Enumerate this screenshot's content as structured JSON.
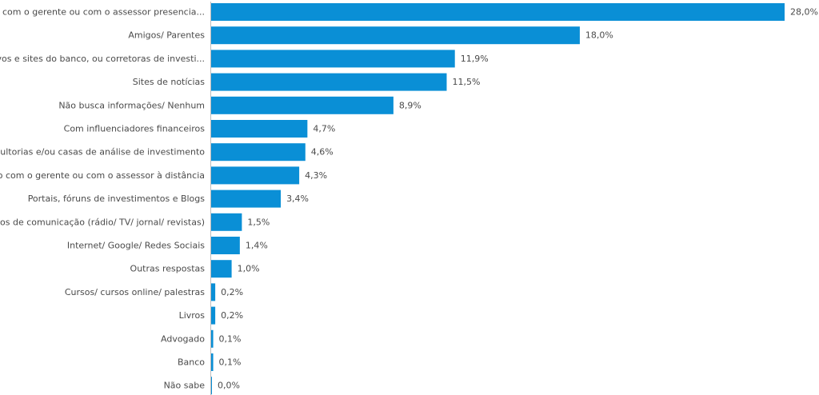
{
  "chart_data": {
    "type": "bar",
    "orientation": "horizontal",
    "categories": [
      "Falando com o gerente ou com o assessor presencia...",
      "Amigos/ Parentes",
      "Aplicativos e sites do banco, ou corretoras de investi...",
      "Sites de notícias",
      "Não busca informações/ Nenhum",
      "Com influenciadores financeiros",
      "Consultorias e/ou casas de análise de investimento",
      "Falando com o gerente ou com o assessor à distância",
      "Portais, fóruns de investimentos e Blogs",
      "Meios de comunicação (rádio/ TV/ jornal/ revistas)",
      "Internet/ Google/ Redes Sociais",
      "Outras respostas",
      "Cursos/ cursos online/ palestras",
      "Livros",
      "Advogado",
      "Banco",
      "Não sabe"
    ],
    "values": [
      28.0,
      18.0,
      11.9,
      11.5,
      8.9,
      4.7,
      4.6,
      4.3,
      3.4,
      1.5,
      1.4,
      1.0,
      0.2,
      0.2,
      0.1,
      0.1,
      0.0
    ],
    "value_labels": [
      "28,0%",
      "18,0%",
      "11,9%",
      "11,5%",
      "8,9%",
      "4,7%",
      "4,6%",
      "4,3%",
      "3,4%",
      "1,5%",
      "1,4%",
      "1,0%",
      "0,2%",
      "0,2%",
      "0,1%",
      "0,1%",
      "0,0%"
    ],
    "xlim": [
      0,
      28.0
    ],
    "grid": false,
    "legend": "none",
    "bar_color": "#0a8fd6",
    "label_color": "#4a4a4a",
    "axis_color": "#bcbcbc"
  }
}
